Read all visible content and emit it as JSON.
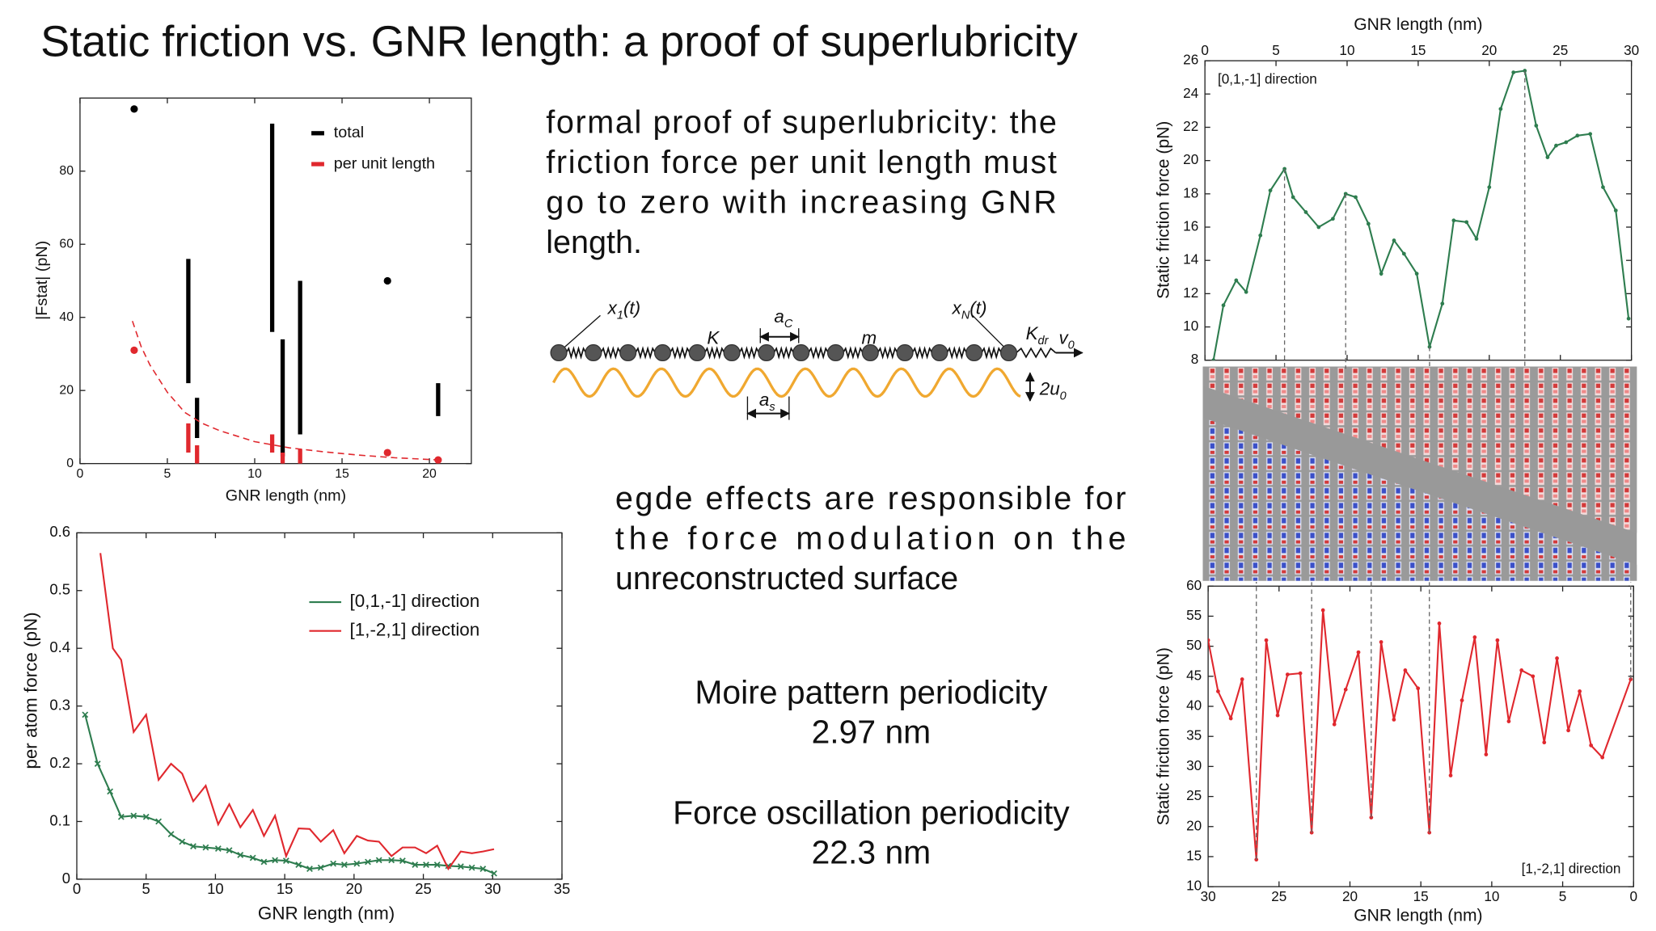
{
  "title": "Static friction vs. GNR length: a proof of superlubricity",
  "paragraph1": [
    "formal proof of superlubricity: the",
    "friction force per unit length must",
    "go to zero with increasing GNR",
    "length."
  ],
  "paragraph2": [
    "egde effects are responsible for",
    "the force modulation on the",
    "unreconstructed surface"
  ],
  "moire": {
    "label": "Moire pattern periodicity",
    "value": "2.97 nm"
  },
  "oscillation": {
    "label": "Force oscillation periodicity",
    "value": "22.3 nm"
  },
  "diagram": {
    "labels": [
      {
        "main": "x",
        "sub": "1",
        "tail": "(t)"
      },
      {
        "main": "K"
      },
      {
        "main": "a",
        "sub": "C"
      },
      {
        "main": "m"
      },
      {
        "main": "x",
        "sub": "N",
        "tail": "(t)"
      },
      {
        "main": "K",
        "sub": "dr"
      },
      {
        "main": "v",
        "sub": "0"
      },
      {
        "main": "a",
        "sub": "s"
      },
      {
        "main": "2u",
        "sub": "0"
      }
    ]
  },
  "chart_data": [
    {
      "type": "range_bar",
      "xlabel": "GNR length (nm)",
      "ylabel": "|Fstat| (pN)",
      "xlim": [
        0,
        22.4
      ],
      "xticks": [
        0,
        5,
        10,
        15,
        20
      ],
      "ylim": [
        0,
        100
      ],
      "yticks": [
        0,
        20,
        40,
        60,
        80
      ],
      "legend": "upper right",
      "series": [
        {
          "name": "total",
          "color": "#000000",
          "bars_x": [
            6.2,
            6.7,
            11,
            11.6,
            12.6,
            20.5
          ],
          "low": [
            22,
            7,
            36,
            2,
            8,
            13
          ],
          "high": [
            56,
            18,
            93,
            34,
            50,
            22
          ],
          "points_x": [
            3.1,
            17.6
          ],
          "points": [
            97,
            50
          ]
        },
        {
          "name": "per unit length",
          "color": "#e0282e",
          "bars_x": [
            6.2,
            6.7,
            11,
            11.6,
            12.6,
            20.5
          ],
          "low": [
            3,
            0,
            3,
            0,
            0,
            0
          ],
          "high": [
            11,
            5,
            8,
            3,
            4,
            1
          ],
          "points_x": [
            3.1,
            17.6,
            20.5
          ],
          "points": [
            31,
            3,
            1
          ],
          "curve_x": [
            3,
            3.5,
            4,
            5,
            6,
            7,
            8,
            10,
            12,
            14,
            16,
            18,
            20.5
          ],
          "curve": [
            39,
            32,
            27,
            19.5,
            14,
            11,
            9,
            6,
            4.3,
            3.2,
            2.3,
            1.6,
            1
          ]
        }
      ]
    },
    {
      "type": "line",
      "xlabel": "GNR length (nm)",
      "ylabel": "per atom force (pN)",
      "xlim": [
        0,
        35
      ],
      "xticks": [
        0,
        5,
        10,
        15,
        20,
        25,
        30,
        35
      ],
      "ylim": [
        0,
        0.6
      ],
      "yticks": [
        0,
        0.1,
        0.2,
        0.3,
        0.4,
        0.5,
        0.6
      ],
      "legend": "upper right",
      "series": [
        {
          "name": "[0,1,-1] direction",
          "color": "#2e7d4f",
          "marker": "x",
          "x": [
            0.6,
            1.5,
            2.4,
            3.2,
            4.1,
            5.0,
            5.9,
            6.8,
            7.6,
            8.4,
            9.3,
            10.2,
            11.0,
            11.8,
            12.7,
            13.5,
            14.3,
            15.1,
            16.0,
            16.8,
            17.6,
            18.5,
            19.3,
            20.2,
            21.0,
            21.8,
            22.7,
            23.5,
            24.4,
            25.2,
            26.0,
            26.8,
            27.7,
            28.5,
            29.3,
            30.1
          ],
          "values": [
            0.285,
            0.2,
            0.152,
            0.108,
            0.11,
            0.108,
            0.1,
            0.078,
            0.065,
            0.057,
            0.055,
            0.053,
            0.05,
            0.042,
            0.037,
            0.03,
            0.033,
            0.032,
            0.025,
            0.018,
            0.02,
            0.027,
            0.025,
            0.027,
            0.03,
            0.033,
            0.033,
            0.032,
            0.025,
            0.025,
            0.025,
            0.023,
            0.022,
            0.02,
            0.018,
            0.01
          ]
        },
        {
          "name": "[1,-2,1] direction",
          "color": "#e0282e",
          "x": [
            1.7,
            2.6,
            3.2,
            4.1,
            5.0,
            5.9,
            6.8,
            7.6,
            8.4,
            9.3,
            10.2,
            11.0,
            11.8,
            12.7,
            13.5,
            14.3,
            15.1,
            16.0,
            16.8,
            17.6,
            18.5,
            19.3,
            20.2,
            21.0,
            21.8,
            22.7,
            23.5,
            24.4,
            25.2,
            26.0,
            26.8,
            27.7,
            28.5,
            29.3,
            30.1
          ],
          "values": [
            0.565,
            0.4,
            0.38,
            0.255,
            0.285,
            0.172,
            0.2,
            0.183,
            0.135,
            0.162,
            0.095,
            0.13,
            0.09,
            0.12,
            0.075,
            0.11,
            0.04,
            0.088,
            0.087,
            0.065,
            0.085,
            0.045,
            0.075,
            0.067,
            0.065,
            0.04,
            0.055,
            0.055,
            0.045,
            0.058,
            0.018,
            0.048,
            0.045,
            0.048,
            0.052
          ]
        }
      ]
    },
    {
      "type": "line",
      "xlabel": "GNR length (nm)",
      "ylabel": "Static friction force (pN)",
      "xaxis_position": "top",
      "annotation": "[0,1,-1] direction",
      "xlim": [
        0,
        30
      ],
      "xticks": [
        0,
        5,
        10,
        15,
        20,
        25,
        30
      ],
      "ylim": [
        8,
        26
      ],
      "yticks": [
        8,
        10,
        12,
        14,
        16,
        18,
        20,
        22,
        24,
        26
      ],
      "guides_x": [
        5.6,
        9.9,
        15.8,
        22.5
      ],
      "series": [
        {
          "color": "#2e7d4f",
          "marker": "dot",
          "x": [
            0.6,
            1.3,
            2.2,
            2.9,
            3.9,
            4.6,
            5.6,
            6.2,
            7.1,
            8.0,
            9.0,
            9.9,
            10.6,
            11.5,
            12.4,
            13.3,
            14.0,
            14.9,
            15.8,
            16.7,
            17.5,
            18.4,
            19.1,
            20.0,
            20.8,
            21.7,
            22.5,
            23.3,
            24.1,
            24.7,
            25.4,
            26.2,
            27.1,
            28.0,
            28.9,
            29.8
          ],
          "values": [
            8.0,
            11.3,
            12.8,
            12.1,
            15.5,
            18.2,
            19.5,
            17.8,
            16.9,
            16.0,
            16.5,
            18.0,
            17.8,
            16.2,
            13.2,
            15.2,
            14.4,
            13.2,
            8.8,
            11.4,
            16.4,
            16.3,
            15.3,
            18.4,
            23.1,
            25.3,
            25.4,
            22.1,
            20.2,
            20.9,
            21.1,
            21.5,
            21.6,
            18.4,
            17.0,
            10.5
          ]
        }
      ]
    },
    {
      "type": "line",
      "xlabel": "GNR length (nm)",
      "ylabel": "Static friction force (pN)",
      "annotation": "[1,-2,1] direction",
      "xlim": [
        30,
        0
      ],
      "xticks": [
        30,
        25,
        20,
        15,
        10,
        5,
        0
      ],
      "ylim": [
        10,
        60
      ],
      "yticks": [
        10,
        15,
        20,
        25,
        30,
        35,
        40,
        45,
        50,
        55,
        60
      ],
      "guides_x": [
        26.6,
        22.7,
        18.5,
        14.4,
        0.2
      ],
      "series": [
        {
          "color": "#e0282e",
          "marker": "dot",
          "x": [
            30,
            29.3,
            28.4,
            27.6,
            26.6,
            25.9,
            25.1,
            24.4,
            23.5,
            22.7,
            21.9,
            21.1,
            20.3,
            19.4,
            18.5,
            17.8,
            16.9,
            16.1,
            15.2,
            14.4,
            13.7,
            12.9,
            12.1,
            11.2,
            10.4,
            9.6,
            8.8,
            7.9,
            7.1,
            6.3,
            5.4,
            4.6,
            3.8,
            3.0,
            2.2,
            0.2
          ],
          "values": [
            51,
            42.5,
            38,
            44.5,
            14.5,
            51,
            38.5,
            45.3,
            45.5,
            19,
            56,
            37,
            42.8,
            49,
            21.5,
            50.7,
            37.8,
            46,
            43,
            19,
            53.8,
            28.5,
            41,
            51.5,
            32,
            51,
            37.5,
            46,
            45,
            34,
            48,
            36,
            42.5,
            33.5,
            31.5,
            44.5
          ]
        }
      ]
    }
  ]
}
